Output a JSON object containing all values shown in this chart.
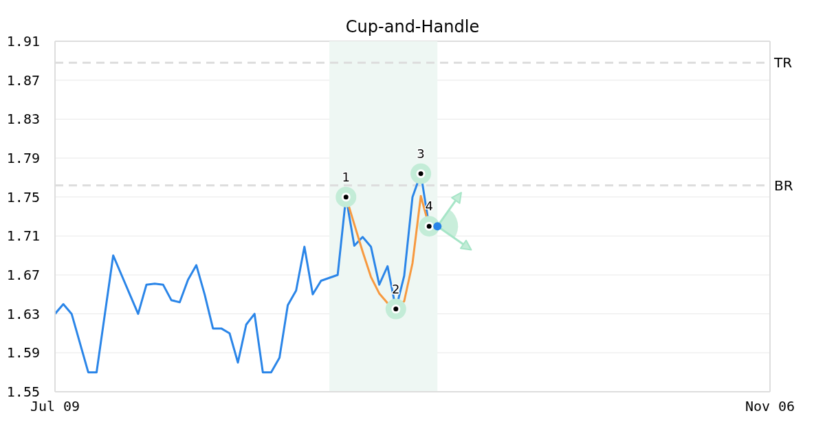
{
  "chart_data": {
    "type": "line",
    "title": "Cup-and-Handle",
    "categories": [
      "Jul 09",
      null,
      null,
      null,
      null,
      null,
      null,
      null,
      null,
      null,
      null,
      null,
      null,
      null,
      null,
      null,
      null,
      null,
      null,
      null,
      null,
      null,
      null,
      null,
      null,
      null,
      null,
      null,
      null,
      null,
      null,
      null,
      null,
      null,
      null,
      null,
      null,
      null,
      null,
      null,
      null,
      null,
      null,
      null,
      null,
      null,
      null,
      null,
      null,
      null,
      null,
      null,
      null,
      null,
      null,
      null,
      null,
      null,
      null,
      null,
      null,
      null,
      null,
      null,
      null,
      null,
      null,
      null,
      null,
      null,
      null,
      null,
      null,
      null,
      null,
      null,
      null,
      null,
      null,
      null,
      null,
      null,
      null,
      null,
      null,
      null,
      "Nov 06"
    ],
    "ylim": [
      1.55,
      1.91
    ],
    "yticks": [
      1.55,
      1.59,
      1.63,
      1.67,
      1.71,
      1.75,
      1.79,
      1.83,
      1.87,
      1.91
    ],
    "grid": "y",
    "series": [
      {
        "color": "#2a85e8",
        "values": [
          1.63,
          1.64,
          1.63,
          1.6,
          1.57,
          1.57,
          1.63,
          1.69,
          1.67,
          1.65,
          1.63,
          1.66,
          1.661,
          1.66,
          1.644,
          1.642,
          1.665,
          1.68,
          1.65,
          1.615,
          1.615,
          1.61,
          1.58,
          1.619,
          1.63,
          1.57,
          1.57,
          1.585,
          1.639,
          1.654,
          1.699,
          1.65,
          1.664,
          1.667,
          1.67,
          1.75,
          1.7,
          1.709,
          1.699,
          1.66,
          1.679,
          1.635,
          1.669,
          1.75,
          1.774,
          1.72,
          null,
          null,
          null,
          null,
          null,
          null,
          null,
          null,
          null,
          null,
          null,
          null,
          null,
          null,
          null,
          null,
          null,
          null,
          null,
          null,
          null,
          null,
          null,
          null,
          null,
          null,
          null,
          null,
          null,
          null,
          null,
          null,
          null,
          null,
          null,
          null,
          null,
          null,
          null,
          null,
          null
        ]
      },
      {
        "color": "#f7993f",
        "values": [
          null,
          null,
          null,
          null,
          null,
          null,
          null,
          null,
          null,
          null,
          null,
          null,
          null,
          null,
          null,
          null,
          null,
          null,
          null,
          null,
          null,
          null,
          null,
          null,
          null,
          null,
          null,
          null,
          null,
          null,
          null,
          null,
          null,
          null,
          null,
          1.75,
          1.722,
          1.694,
          1.668,
          1.651,
          1.641,
          1.636,
          1.643,
          1.682,
          1.751,
          1.72,
          null,
          null,
          null,
          null,
          null,
          null,
          null,
          null,
          null,
          null,
          null,
          null,
          null,
          null,
          null,
          null,
          null,
          null,
          null,
          null,
          null,
          null,
          null,
          null,
          null,
          null,
          null,
          null,
          null,
          null,
          null,
          null,
          null,
          null,
          null,
          null,
          null,
          null,
          null,
          null,
          null
        ]
      },
      {
        "type": "scatter",
        "marker": "circle",
        "color": "#c3ecd7",
        "values": [
          null,
          null,
          null,
          null,
          null,
          null,
          null,
          null,
          null,
          null,
          null,
          null,
          null,
          null,
          null,
          null,
          null,
          null,
          null,
          null,
          null,
          null,
          null,
          null,
          null,
          null,
          null,
          null,
          null,
          null,
          null,
          null,
          null,
          null,
          null,
          1.75,
          null,
          null,
          null,
          null,
          null,
          1.635,
          null,
          null,
          1.774,
          1.72,
          null,
          null,
          null,
          null,
          null,
          null,
          null,
          null,
          null,
          null,
          null,
          null,
          null,
          null,
          null,
          null,
          null,
          null,
          null,
          null,
          null,
          null,
          null,
          null,
          null,
          null,
          null,
          null,
          null,
          null,
          null,
          null,
          null,
          null,
          null,
          null,
          null,
          null,
          null,
          null,
          null
        ]
      },
      {
        "type": "scatter",
        "marker": "circle",
        "color": "#2a85e8",
        "values": [
          null,
          null,
          null,
          null,
          null,
          null,
          null,
          null,
          null,
          null,
          null,
          null,
          null,
          null,
          null,
          null,
          null,
          null,
          null,
          null,
          null,
          null,
          null,
          null,
          null,
          null,
          null,
          null,
          null,
          null,
          null,
          null,
          null,
          null,
          null,
          null,
          null,
          null,
          null,
          null,
          null,
          null,
          null,
          null,
          null,
          null,
          1.72,
          null,
          null,
          null,
          null,
          null,
          null,
          null,
          null,
          null,
          null,
          null,
          null,
          null,
          null,
          null,
          null,
          null,
          null,
          null,
          null,
          null,
          null,
          null,
          null,
          null,
          null,
          null,
          null,
          null,
          null,
          null,
          null,
          null,
          null,
          null,
          null,
          null,
          null,
          null,
          null
        ]
      }
    ],
    "annotations": [
      {
        "text": "1",
        "y": 1.75
      },
      {
        "text": "2",
        "y": 1.635
      },
      {
        "text": "3",
        "y": 1.774
      },
      {
        "text": "4",
        "y": 1.72
      }
    ],
    "ref_lines": [
      {
        "axis": "y",
        "value": 1.888,
        "label": "TR",
        "color": "#dddddd",
        "line_style": "dashed"
      },
      {
        "axis": "y",
        "value": 1.762,
        "label": "BR",
        "color": "#dddddd",
        "line_style": "dashed"
      }
    ]
  }
}
